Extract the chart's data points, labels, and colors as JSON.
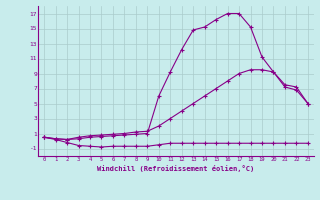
{
  "xlabel": "Windchill (Refroidissement éolien,°C)",
  "background_color": "#c8ecec",
  "line_color": "#880088",
  "grid_color": "#aacccc",
  "xlim": [
    -0.5,
    23.5
  ],
  "ylim": [
    -2.0,
    18.0
  ],
  "xticks": [
    0,
    1,
    2,
    3,
    4,
    5,
    6,
    7,
    8,
    9,
    10,
    11,
    12,
    13,
    14,
    15,
    16,
    17,
    18,
    19,
    20,
    21,
    22,
    23
  ],
  "yticks": [
    -1,
    1,
    3,
    5,
    7,
    9,
    11,
    13,
    15,
    17
  ],
  "line1_x": [
    0,
    1,
    2,
    3,
    4,
    5,
    6,
    7,
    8,
    9,
    10,
    11,
    12,
    13,
    14,
    15,
    16,
    17,
    18,
    19,
    20,
    21,
    22,
    23
  ],
  "line1_y": [
    0.5,
    0.2,
    -0.2,
    -0.6,
    -0.7,
    -0.8,
    -0.7,
    -0.7,
    -0.7,
    -0.7,
    -0.5,
    -0.3,
    -0.3,
    -0.3,
    -0.3,
    -0.3,
    -0.3,
    -0.3,
    -0.3,
    -0.3,
    -0.3,
    -0.3,
    -0.3,
    -0.3
  ],
  "line2_x": [
    0,
    1,
    2,
    3,
    4,
    5,
    6,
    7,
    8,
    9,
    10,
    11,
    12,
    13,
    14,
    15,
    16,
    17,
    18,
    19,
    20,
    21,
    22,
    23
  ],
  "line2_y": [
    0.5,
    0.3,
    0.2,
    0.3,
    0.5,
    0.6,
    0.7,
    0.8,
    0.9,
    1.0,
    6.0,
    9.2,
    12.2,
    14.8,
    15.2,
    16.2,
    17.0,
    17.0,
    15.2,
    11.2,
    9.2,
    7.2,
    6.8,
    5.0
  ],
  "line3_x": [
    0,
    1,
    2,
    3,
    4,
    5,
    6,
    7,
    8,
    9,
    10,
    11,
    12,
    13,
    14,
    15,
    16,
    17,
    18,
    19,
    20,
    21,
    22,
    23
  ],
  "line3_y": [
    0.5,
    0.3,
    0.2,
    0.5,
    0.7,
    0.8,
    0.9,
    1.0,
    1.2,
    1.3,
    2.0,
    3.0,
    4.0,
    5.0,
    6.0,
    7.0,
    8.0,
    9.0,
    9.5,
    9.5,
    9.2,
    7.5,
    7.2,
    5.0
  ]
}
